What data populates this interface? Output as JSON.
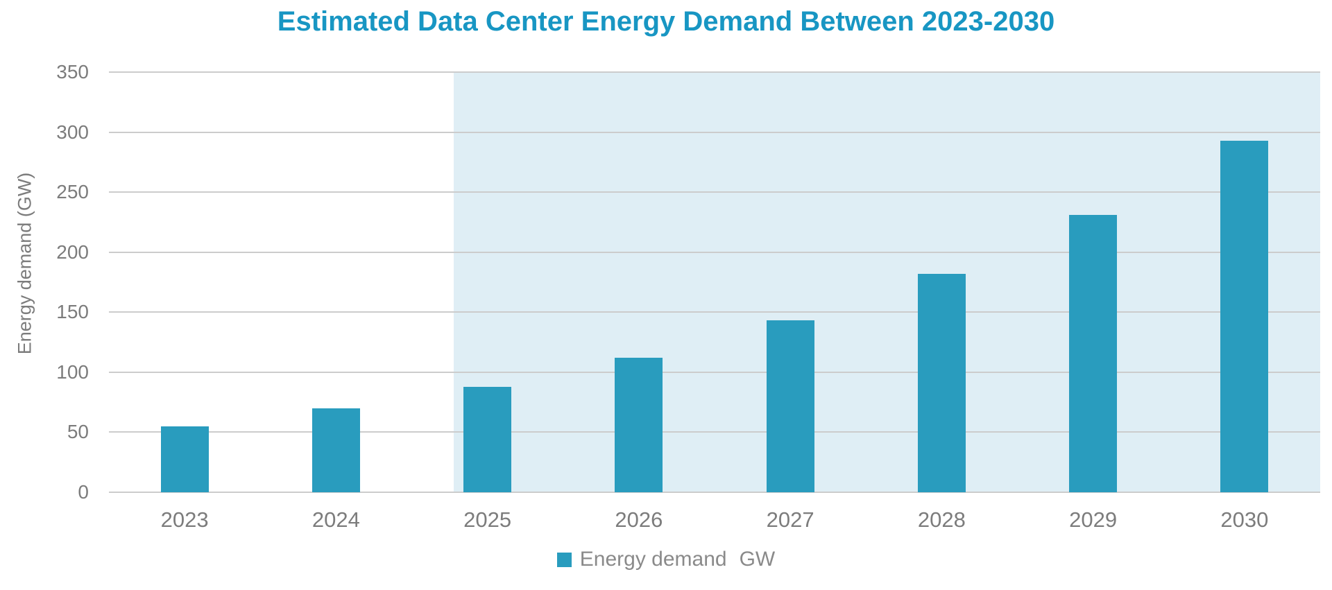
{
  "chart_data": {
    "type": "bar",
    "title": "Estimated Data Center Energy Demand Between 2023-2030",
    "categories": [
      "2023",
      "2024",
      "2025",
      "2026",
      "2027",
      "2028",
      "2029",
      "2030"
    ],
    "series": [
      {
        "name": "Energy demand",
        "unit": "GW",
        "values": [
          55,
          70,
          88,
          112,
          143,
          182,
          231,
          293
        ]
      }
    ],
    "xlabel": "",
    "ylabel": "Energy demand (GW)",
    "ylim": [
      0,
      350
    ],
    "yticks": [
      0,
      50,
      100,
      150,
      200,
      250,
      300,
      350
    ],
    "grid": "horizontal",
    "legend": {
      "position": "bottom-center",
      "label": "Energy demand",
      "unit": "GW"
    },
    "forecast_region": {
      "from_category": "2025",
      "to_category": "2030",
      "style": "light-blue shaded background behind 2025-2030 bars"
    },
    "colors": {
      "bar": "#299CBE",
      "title": "#1896C3",
      "forecast_background": "#DFEEF5",
      "gridline": "#CCCCCC",
      "axis_text": "#7C7C7C",
      "legend_text": "#8A8A8A",
      "background": "#FFFFFF"
    }
  }
}
